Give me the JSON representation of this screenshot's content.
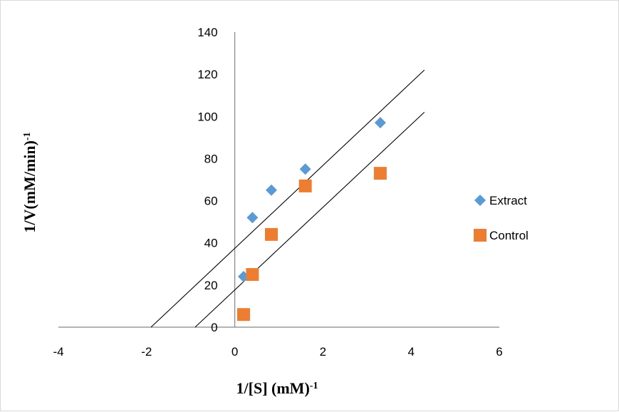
{
  "chart_data": {
    "type": "scatter",
    "title": "",
    "xlabel": {
      "base": "1/[S] (mM)",
      "sup": "-1"
    },
    "ylabel": {
      "base": "1/V(mM/min)",
      "sup": "-1"
    },
    "xlim": [
      -4,
      6
    ],
    "ylim": [
      0,
      140
    ],
    "x_ticks": [
      -4,
      -2,
      0,
      2,
      4,
      6
    ],
    "y_ticks": [
      0,
      20,
      40,
      60,
      80,
      100,
      120,
      140
    ],
    "grid": false,
    "legend_position": "right",
    "series": [
      {
        "name": "Extract",
        "marker": "diamond",
        "color": "#5b9bd5",
        "x": [
          0.2,
          0.4,
          0.83,
          1.6,
          3.3
        ],
        "y": [
          24,
          52,
          65,
          75,
          97
        ],
        "trendline": {
          "x": [
            -1.9,
            4.3
          ],
          "y": [
            0,
            122
          ]
        }
      },
      {
        "name": "Control",
        "marker": "square",
        "color": "#ed7d31",
        "x": [
          0.2,
          0.4,
          0.83,
          1.6,
          3.3
        ],
        "y": [
          6,
          25,
          44,
          67,
          73
        ],
        "trendline": {
          "x": [
            -0.9,
            4.3
          ],
          "y": [
            0,
            102
          ]
        }
      }
    ]
  }
}
